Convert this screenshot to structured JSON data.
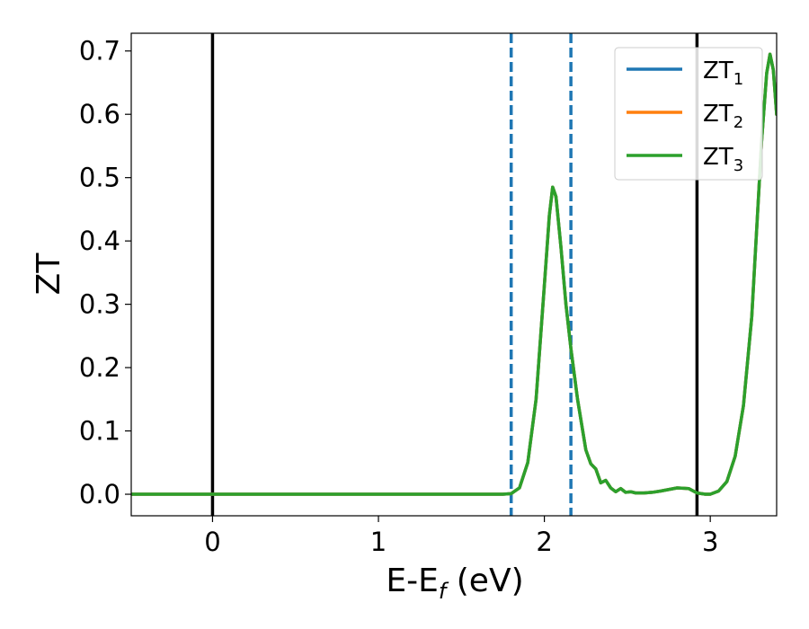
{
  "chart_data": {
    "type": "line",
    "xlabel": {
      "base": "E-E",
      "sub": "f",
      "unit": " (eV)"
    },
    "ylabel": "ZT",
    "xlim": [
      -0.49,
      3.4
    ],
    "ylim": [
      -0.034,
      0.728
    ],
    "x_ticks": [
      0,
      1,
      2,
      3
    ],
    "y_ticks": [
      0.0,
      0.1,
      0.2,
      0.3,
      0.4,
      0.5,
      0.6,
      0.7
    ],
    "legend_position": "top-right",
    "vertical_lines": [
      {
        "x": 0.0,
        "style": "solid",
        "color": "#000000"
      },
      {
        "x": 2.92,
        "style": "solid",
        "color": "#000000"
      },
      {
        "x": 1.8,
        "style": "dashed",
        "color": "#1f77b4"
      },
      {
        "x": 2.16,
        "style": "dashed",
        "color": "#1f77b4"
      }
    ],
    "series": [
      {
        "name_base": "ZT",
        "name_sub": "1",
        "color": "#1f77b4"
      },
      {
        "name_base": "ZT",
        "name_sub": "2",
        "color": "#ff7f0e"
      },
      {
        "name_base": "ZT",
        "name_sub": "3",
        "color": "#2ca02c"
      }
    ],
    "x": [
      -0.49,
      0.0,
      1.0,
      1.6,
      1.75,
      1.8,
      1.85,
      1.9,
      1.95,
      2.0,
      2.03,
      2.05,
      2.07,
      2.1,
      2.13,
      2.16,
      2.2,
      2.25,
      2.28,
      2.31,
      2.34,
      2.37,
      2.4,
      2.43,
      2.46,
      2.49,
      2.52,
      2.55,
      2.6,
      2.65,
      2.7,
      2.8,
      2.87,
      2.92,
      2.97,
      3.0,
      3.05,
      3.1,
      3.15,
      3.2,
      3.25,
      3.28,
      3.31,
      3.34,
      3.36,
      3.38,
      3.4
    ],
    "values": [
      0.0,
      0.0,
      0.0,
      0.0,
      0.0,
      0.001,
      0.01,
      0.05,
      0.15,
      0.33,
      0.44,
      0.485,
      0.47,
      0.39,
      0.3,
      0.23,
      0.15,
      0.07,
      0.048,
      0.04,
      0.018,
      0.022,
      0.01,
      0.004,
      0.009,
      0.003,
      0.004,
      0.002,
      0.002,
      0.003,
      0.005,
      0.01,
      0.009,
      0.002,
      0.0,
      0.0,
      0.005,
      0.02,
      0.06,
      0.14,
      0.28,
      0.42,
      0.56,
      0.665,
      0.695,
      0.67,
      0.6
    ]
  }
}
